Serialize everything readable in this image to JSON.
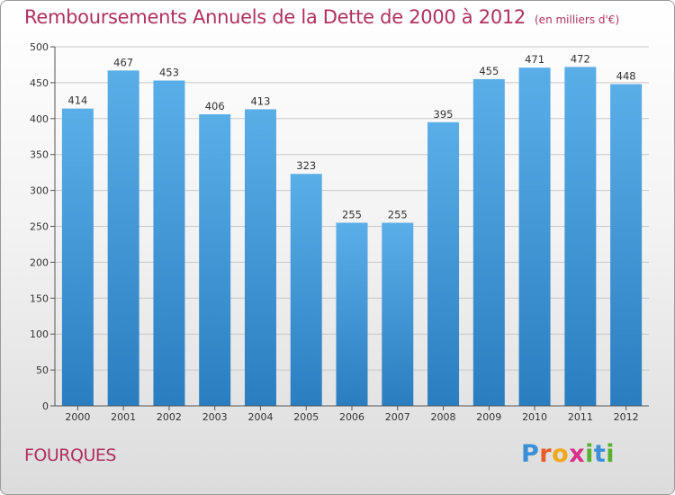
{
  "chart_data": {
    "type": "bar",
    "title": "Remboursements Annuels de la Dette de 2000 à 2012",
    "unit_note": "(en milliers d'€)",
    "categories": [
      "2000",
      "2001",
      "2002",
      "2003",
      "2004",
      "2005",
      "2006",
      "2007",
      "2008",
      "2009",
      "2010",
      "2011",
      "2012"
    ],
    "values": [
      414,
      467,
      453,
      406,
      413,
      323,
      255,
      255,
      395,
      455,
      471,
      472,
      448
    ],
    "ylim": [
      0,
      500
    ],
    "yticks": [
      0,
      50,
      100,
      150,
      200,
      250,
      300,
      350,
      400,
      450,
      500
    ],
    "grid": true,
    "bar_color_top": "#5aaee8",
    "bar_color_bottom": "#2a7ec0"
  },
  "footer": {
    "town": "FOURQUES",
    "logo_letters": [
      "P",
      "r",
      "o",
      "x",
      "i",
      "t",
      "i"
    ],
    "logo_colors": [
      "#3a8fd6",
      "#e85b2a",
      "#f0a818",
      "#d8308a",
      "#58b030",
      "#3a8fd6",
      "#58b030"
    ]
  }
}
